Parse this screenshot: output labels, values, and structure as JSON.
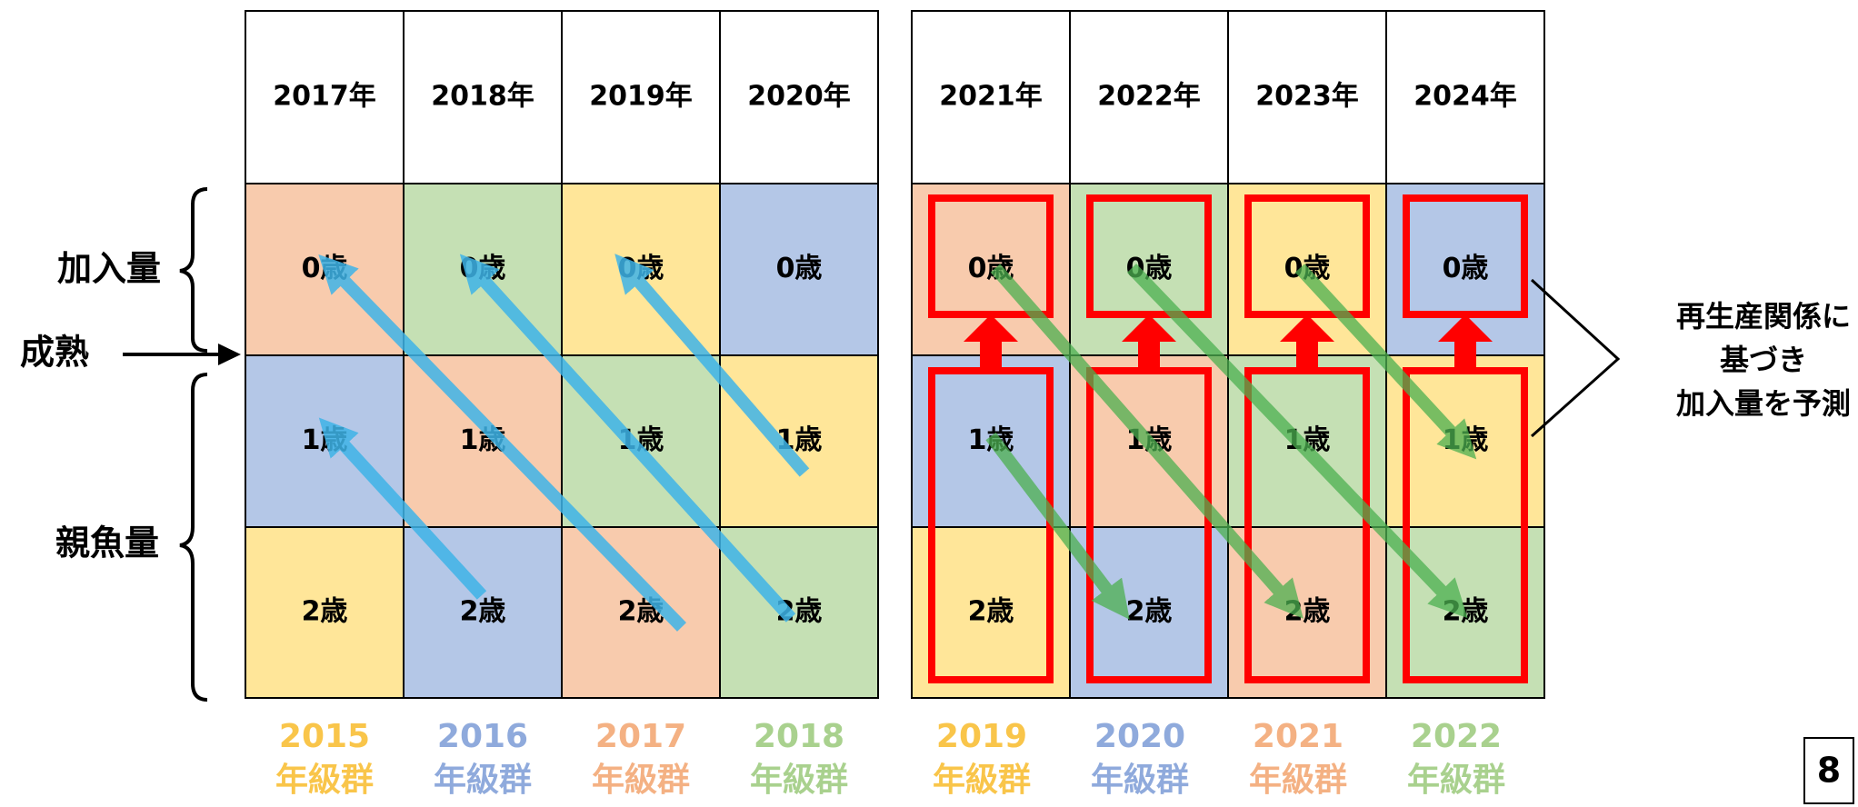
{
  "tables": [
    {
      "headers": [
        "2017年",
        "2018年",
        "2019年",
        "2020年"
      ],
      "rows": [
        [
          "0歳",
          "0歳",
          "0歳",
          "0歳"
        ],
        [
          "1歳",
          "1歳",
          "1歳",
          "1歳"
        ],
        [
          "2歳",
          "2歳",
          "2歳",
          "2歳"
        ]
      ],
      "cohorts": [
        [
          "2015",
          "年級群"
        ],
        [
          "2016",
          "年級群"
        ],
        [
          "2017",
          "年級群"
        ],
        [
          "2018",
          "年級群"
        ]
      ]
    },
    {
      "headers": [
        "2021年",
        "2022年",
        "2023年",
        "2024年"
      ],
      "rows": [
        [
          "0歳",
          "0歳",
          "0歳",
          "0歳"
        ],
        [
          "1歳",
          "1歳",
          "1歳",
          "1歳"
        ],
        [
          "2歳",
          "2歳",
          "2歳",
          "2歳"
        ]
      ],
      "cohorts": [
        [
          "2019",
          "年級群"
        ],
        [
          "2020",
          "年級群"
        ],
        [
          "2021",
          "年級群"
        ],
        [
          "2022",
          "年級群"
        ]
      ]
    }
  ],
  "labels": {
    "recruitment": "加入量",
    "maturity": "成熟",
    "spawning": "親魚量"
  },
  "note": [
    "再生産関係に",
    "基づき",
    "加入量を予測"
  ],
  "page_number": "8"
}
